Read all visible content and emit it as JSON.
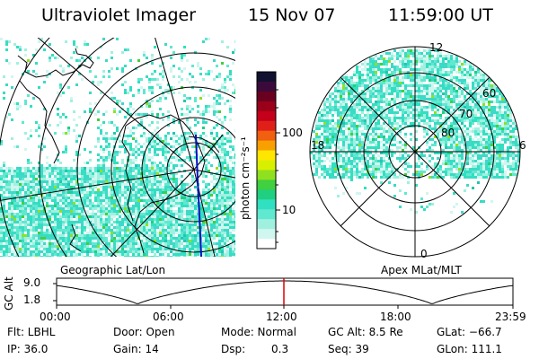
{
  "header": {
    "instrument": "Ultraviolet Imager",
    "date": "15 Nov 07",
    "time": "11:59:00 UT"
  },
  "colorbar": {
    "unit_label": "photon cm⁻²s⁻¹",
    "ticks": [
      "100",
      "10"
    ],
    "colors": [
      "#101030",
      "#3a0a3a",
      "#6a0020",
      "#9a001a",
      "#c4001a",
      "#e02018",
      "#f06010",
      "#f8a000",
      "#ffe600",
      "#d8f000",
      "#90e020",
      "#40d040",
      "#20d080",
      "#30e0c0",
      "#60e8d0",
      "#a0f0e0",
      "#d0f6f0",
      "#ffffff"
    ]
  },
  "left_panel": {
    "label": "Geographic Lat/Lon"
  },
  "right_panel": {
    "label": "Apex MLat/MLT",
    "mlt_labels": {
      "top": "12",
      "left": "18",
      "right": "6",
      "bottom": "0"
    },
    "lat_labels": [
      "60",
      "70",
      "80"
    ]
  },
  "timeline": {
    "axis_title": "GC Alt",
    "y_ticks": [
      "9.0",
      "1.8"
    ],
    "x_ticks": [
      "00:00",
      "06:00",
      "12:00",
      "18:00",
      "23:59"
    ],
    "cursor_color": "#e00000"
  },
  "status": {
    "filter": "Flt: LBHL",
    "ip": "IP: 36.0",
    "door": "Door: Open",
    "gain": "Gain: 14",
    "mode": "Mode: Normal",
    "dsp_label": "Dsp:",
    "dsp_value": "0.3",
    "gc_alt": "GC Alt: 8.5 Re",
    "seq": "Seq: 39",
    "glat": "GLat: −66.7",
    "glon": "GLon: 111.1"
  }
}
